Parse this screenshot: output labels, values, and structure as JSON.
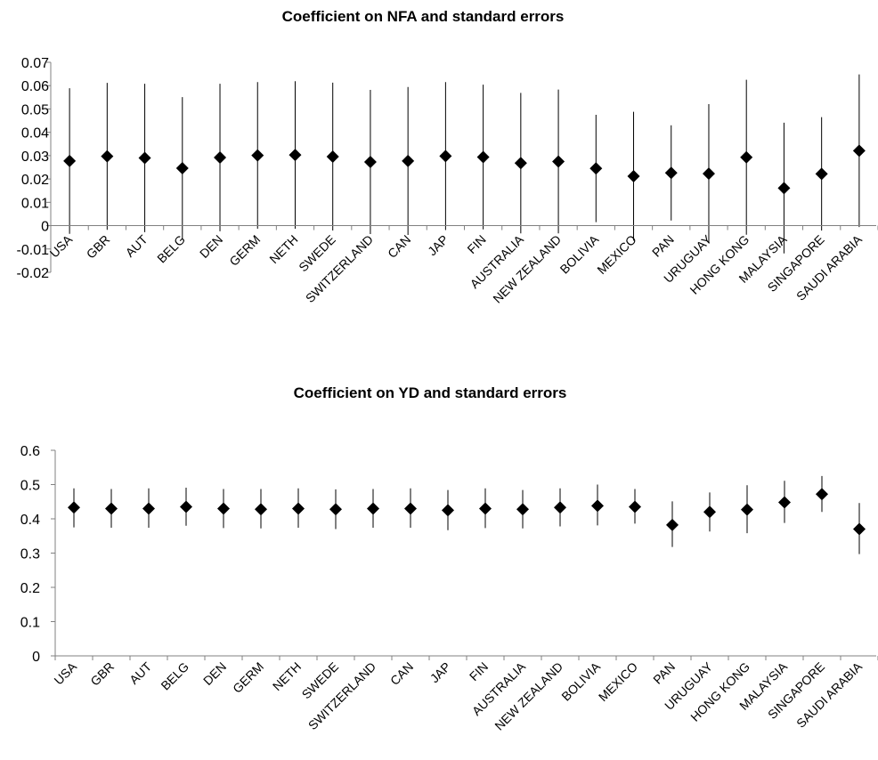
{
  "chart_data": [
    {
      "type": "scatter",
      "title": "Coefficient on NFA and standard errors",
      "xlabel": "",
      "ylabel": "",
      "ylim": [
        -0.02,
        0.07
      ],
      "yticks": [
        "0.07",
        "0.06",
        "0.05",
        "0.04",
        "0.03",
        "0.02",
        "0.01",
        "0",
        "-0.01",
        "-0.02"
      ],
      "grid": false,
      "legend": "none",
      "categories": [
        "USA",
        "GBR",
        "AUT",
        "BELG",
        "DEN",
        "GERM",
        "NETH",
        "SWEDE",
        "SWITZERLAND",
        "CAN",
        "JAP",
        "FIN",
        "AUSTRALIA",
        "NEW ZEALAND",
        "BOLIVIA",
        "MEXICO",
        "PAN",
        "URUGUAY",
        "HONG KONG",
        "MALAYSIA",
        "SINGAPORE",
        "SAUDI ARABIA"
      ],
      "series": [
        {
          "values": [
            0.0277,
            0.0297,
            0.029,
            0.0246,
            0.0292,
            0.0301,
            0.0303,
            0.0296,
            0.0273,
            0.0277,
            0.0298,
            0.0294,
            0.0268,
            0.0275,
            0.0245,
            0.0212,
            0.0226,
            0.0223,
            0.0293,
            0.0161,
            0.0222,
            0.0321
          ],
          "upper": [
            0.0589,
            0.0612,
            0.0608,
            0.0551,
            0.0608,
            0.0615,
            0.0619,
            0.0613,
            0.0582,
            0.0594,
            0.0615,
            0.0604,
            0.0569,
            0.0583,
            0.0475,
            0.0488,
            0.043,
            0.0521,
            0.0625,
            0.0441,
            0.0465,
            0.0648
          ],
          "lower": [
            -0.0035,
            -0.0018,
            -0.0028,
            -0.0059,
            -0.0024,
            -0.0013,
            -0.0013,
            -0.0021,
            -0.0036,
            -0.004,
            -0.0019,
            -0.0016,
            -0.0033,
            -0.0033,
            0.0015,
            -0.0064,
            0.0022,
            -0.0075,
            -0.0039,
            -0.0119,
            -0.0021,
            -0.0006
          ]
        }
      ],
      "color": "#000000"
    },
    {
      "type": "scatter",
      "title": "Coefficient on YD and standard errors",
      "xlabel": "",
      "ylabel": "",
      "ylim": [
        0,
        0.6
      ],
      "yticks": [
        "0.6",
        "0.5",
        "0.4",
        "0.3",
        "0.2",
        "0.1",
        "0"
      ],
      "grid": false,
      "legend": "none",
      "categories": [
        "USA",
        "GBR",
        "AUT",
        "BELG",
        "DEN",
        "GERM",
        "NETH",
        "SWEDE",
        "SWITZERLAND",
        "CAN",
        "JAP",
        "FIN",
        "AUSTRALIA",
        "NEW ZEALAND",
        "BOLIVIA",
        "MEXICO",
        "PAN",
        "URUGUAY",
        "HONG KONG",
        "MALAYSIA",
        "SINGAPORE",
        "SAUDI ARABIA"
      ],
      "series": [
        {
          "values": [
            0.433,
            0.43,
            0.43,
            0.435,
            0.43,
            0.428,
            0.43,
            0.428,
            0.43,
            0.43,
            0.425,
            0.43,
            0.428,
            0.433,
            0.438,
            0.435,
            0.382,
            0.42,
            0.427,
            0.448,
            0.472,
            0.37
          ],
          "upper": [
            0.489,
            0.487,
            0.489,
            0.491,
            0.487,
            0.487,
            0.489,
            0.486,
            0.487,
            0.489,
            0.484,
            0.489,
            0.484,
            0.489,
            0.5,
            0.487,
            0.451,
            0.477,
            0.498,
            0.511,
            0.525,
            0.446
          ],
          "lower": [
            0.375,
            0.374,
            0.374,
            0.38,
            0.373,
            0.372,
            0.374,
            0.37,
            0.374,
            0.374,
            0.367,
            0.373,
            0.372,
            0.378,
            0.381,
            0.386,
            0.318,
            0.363,
            0.358,
            0.388,
            0.42,
            0.297
          ]
        }
      ],
      "color": "#000000"
    }
  ]
}
